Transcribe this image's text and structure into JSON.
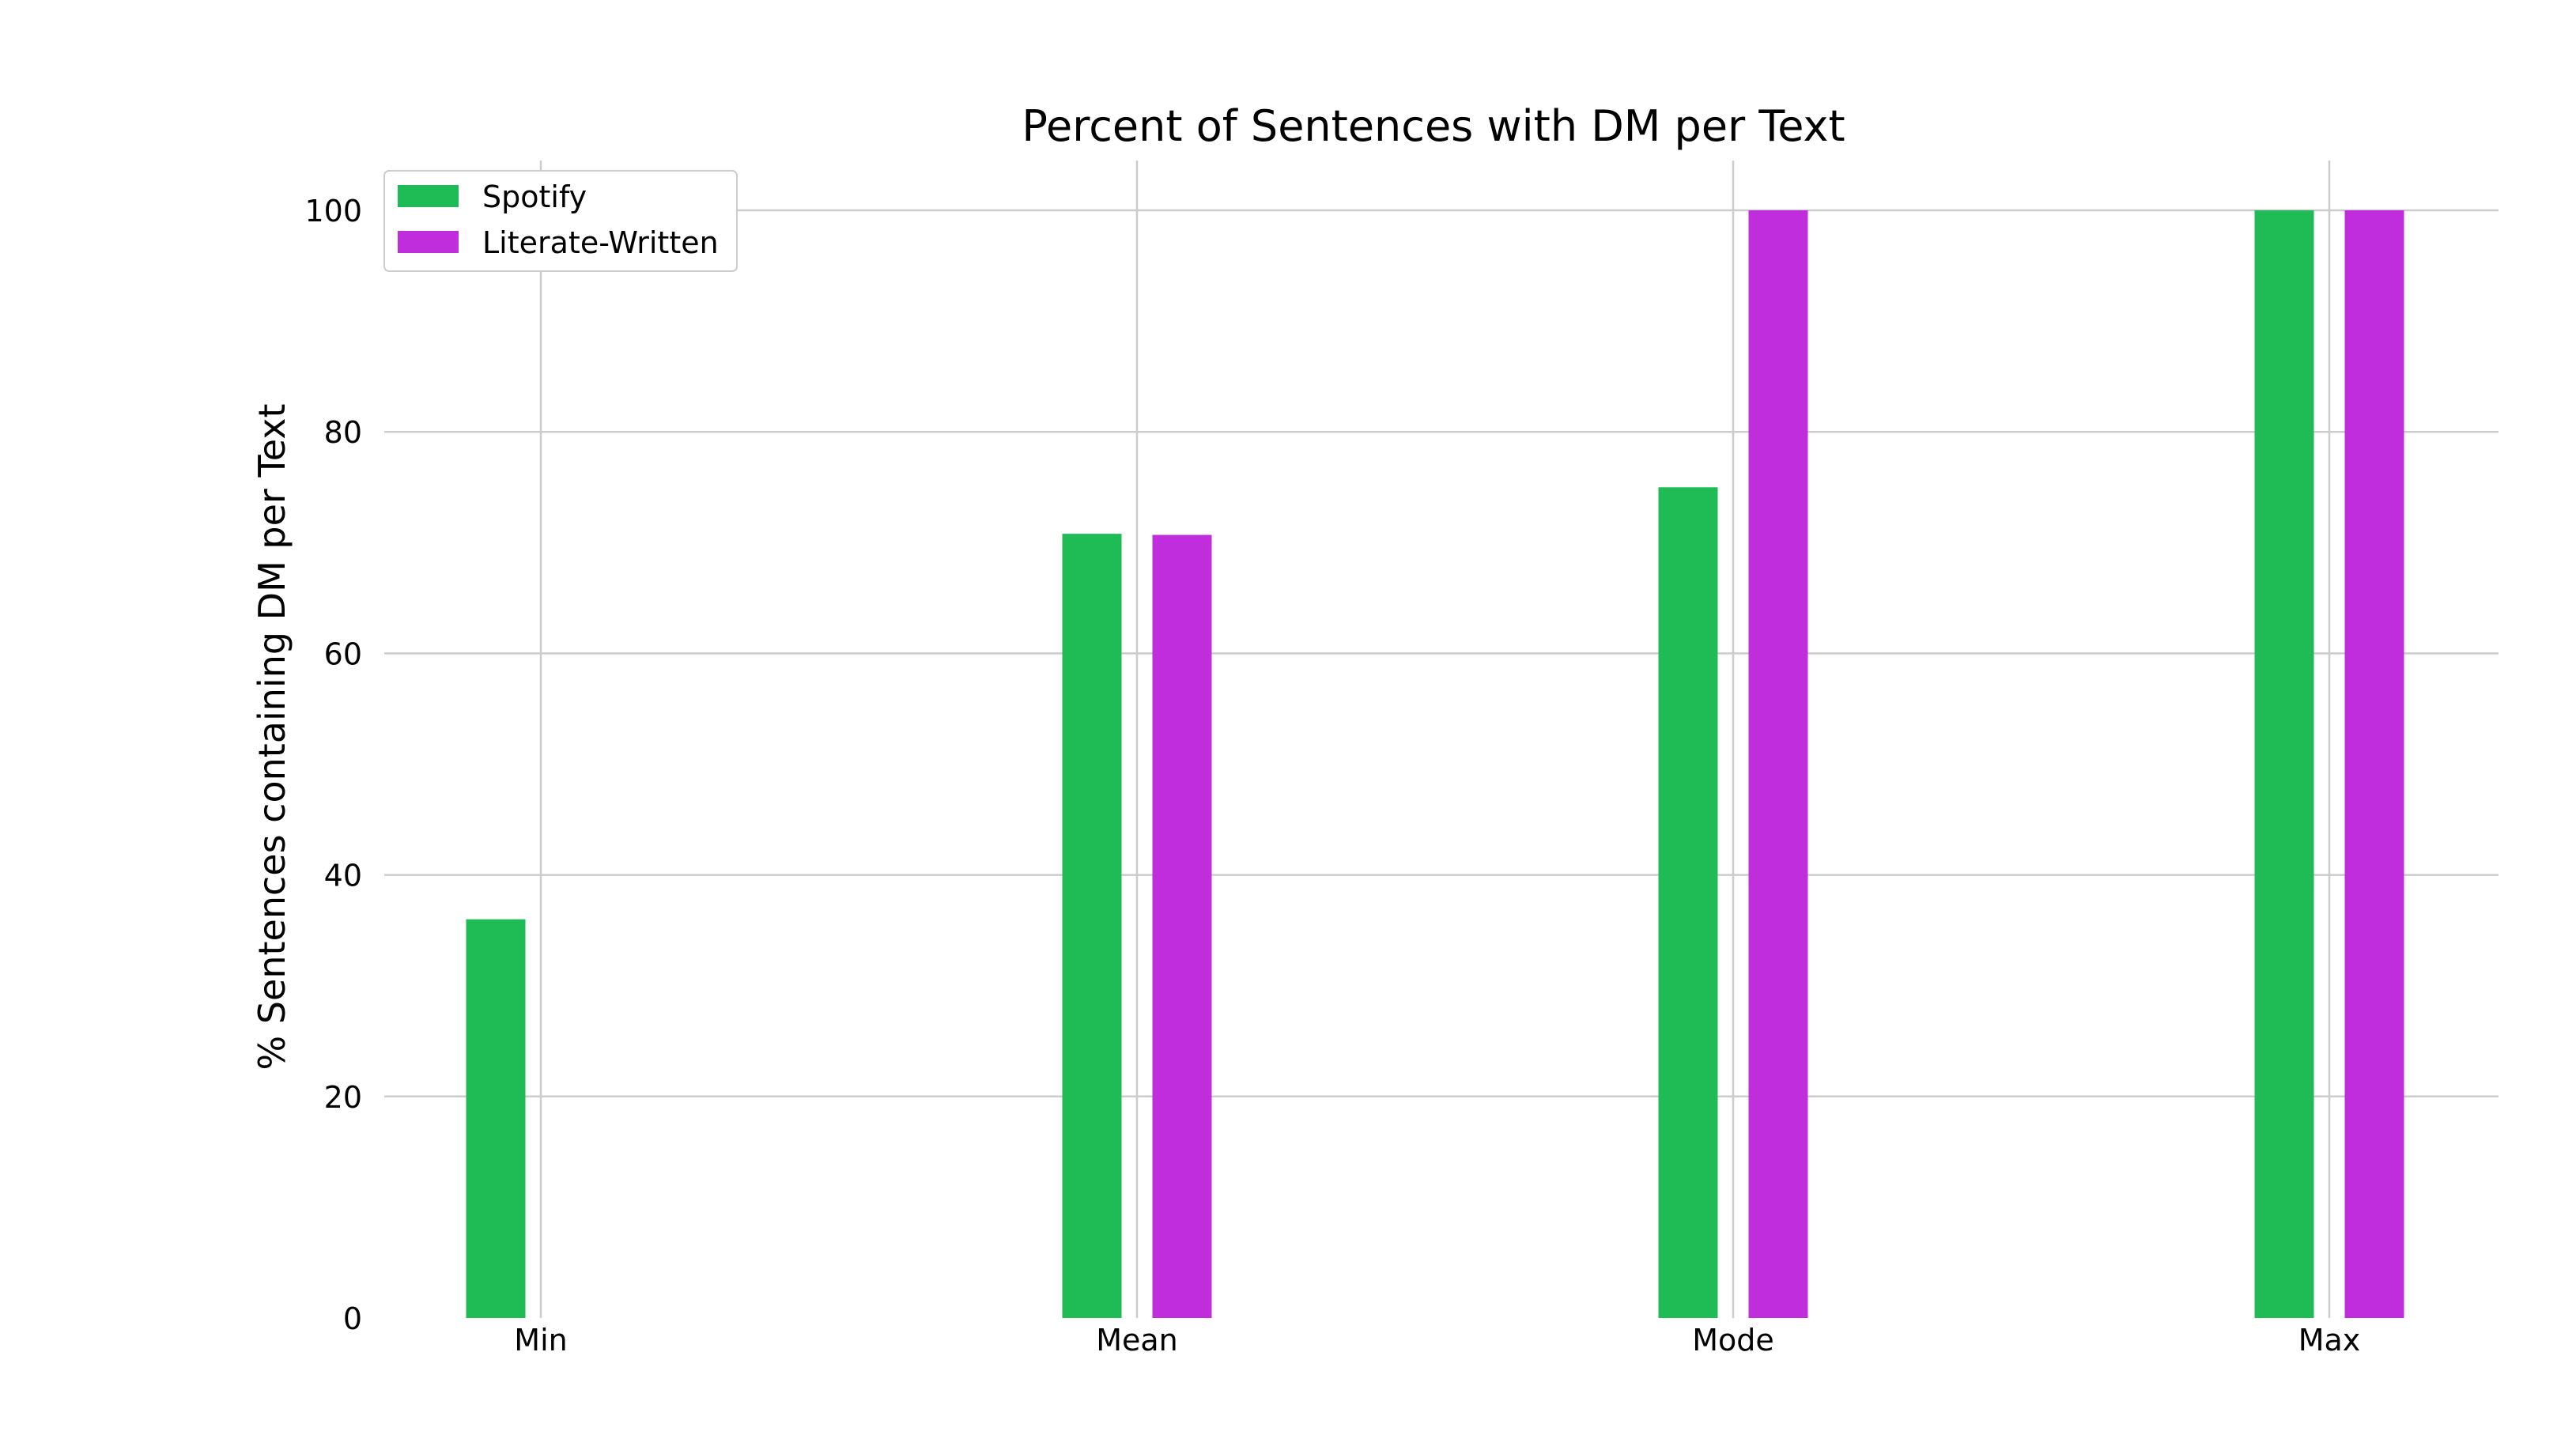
{
  "chart_data": {
    "type": "bar",
    "title": "Percent of Sentences with DM per Text",
    "xlabel": "",
    "ylabel": "% Sentences containing DM per Text",
    "categories": [
      "Min",
      "Mean",
      "Mode",
      "Max"
    ],
    "series": [
      {
        "name": "Spotify",
        "color": "#1fbb55",
        "values": [
          36.0,
          70.8,
          75.0,
          100.0
        ]
      },
      {
        "name": "Literate-Written",
        "color": "#bf2ddd",
        "values": [
          0.0,
          70.7,
          100.0,
          100.0
        ]
      }
    ],
    "ylim": [
      0,
      104.5
    ],
    "yticks": [
      0,
      20,
      40,
      60,
      80,
      100
    ],
    "grid": true,
    "legend_position": "top-left"
  }
}
